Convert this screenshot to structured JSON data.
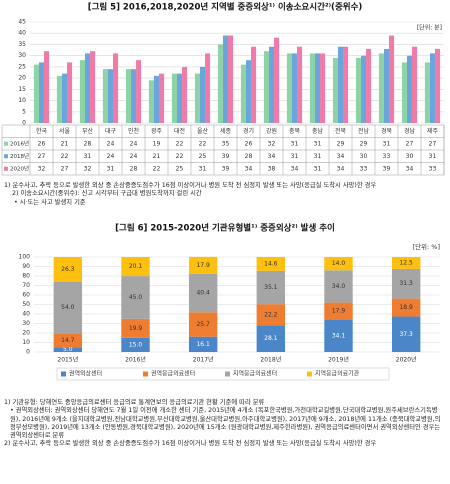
{
  "chart_data": [
    {
      "type": "bar",
      "title": "[그림 5] 2016,2018,2020년 지역별 중증외상¹⁾ 이송소요시간²⁾(중위수)",
      "unit_label": "[단위: 분]",
      "categories": [
        "한국",
        "서울",
        "부산",
        "대구",
        "인천",
        "광주",
        "대전",
        "울산",
        "세종",
        "경기",
        "강원",
        "충북",
        "충남",
        "전북",
        "전남",
        "경북",
        "경남",
        "제주"
      ],
      "series": [
        {
          "name": "2016년",
          "color": "#8ed3a6",
          "values": [
            26,
            21,
            28,
            24,
            24,
            19,
            22,
            22,
            35,
            26,
            32,
            31,
            31,
            29,
            29,
            31,
            27,
            27
          ]
        },
        {
          "name": "2018년",
          "color": "#6aa6dc",
          "values": [
            27,
            22,
            31,
            24,
            24,
            21,
            22,
            25,
            39,
            28,
            34,
            31,
            31,
            34,
            30,
            33,
            30,
            31
          ]
        },
        {
          "name": "2020년",
          "color": "#f07aa8",
          "values": [
            32,
            27,
            32,
            31,
            28,
            22,
            25,
            31,
            39,
            34,
            38,
            34,
            31,
            34,
            33,
            39,
            34,
            33
          ]
        }
      ],
      "ylim": [
        0,
        45
      ],
      "yticks": [
        0,
        5,
        10,
        15,
        20,
        25,
        30,
        35,
        40,
        45
      ],
      "grid": true
    },
    {
      "type": "stacked_bar",
      "title": "[그림 6] 2015-2020년 기관유형별¹⁾ 중증외상²⁾ 발생 추이",
      "unit_label": "[단위: %]",
      "categories": [
        "2015년",
        "2016년",
        "2017년",
        "2018년",
        "2019년",
        "2020년"
      ],
      "series": [
        {
          "name": "권역외상센터",
          "color": "#4a86c8",
          "values": [
            5.0,
            15.0,
            16.1,
            28.1,
            34.1,
            37.3
          ],
          "value_labels": [
            "5.0",
            "15.0",
            "16.1",
            "28.1",
            "34.1",
            "37.3"
          ]
        },
        {
          "name": "권역응급의료센터",
          "color": "#ee7d31",
          "values": [
            14.7,
            19.9,
            25.7,
            22.2,
            17.9,
            18.9
          ],
          "value_labels": [
            "14.7",
            "19.9",
            "25.7",
            "22.2",
            "17.9",
            "18.9"
          ]
        },
        {
          "name": "지역응급의료센터",
          "color": "#a5a5a5",
          "values": [
            54.0,
            45.0,
            40.4,
            35.1,
            34.0,
            31.3
          ],
          "value_labels": [
            "54.0",
            "45.0",
            "40.4",
            "35.1",
            "34.0",
            "31.3"
          ]
        },
        {
          "name": "지역응급의료기관",
          "color": "#fdc00f",
          "values": [
            26.3,
            20.1,
            17.9,
            14.6,
            14.0,
            12.5
          ],
          "value_labels": [
            "26.3",
            "20.1",
            "17.9",
            "14.6",
            "14.0",
            "12.5"
          ]
        }
      ],
      "ylim": [
        0,
        100
      ],
      "yticks": [
        0,
        10,
        20,
        30,
        40,
        50,
        60,
        70,
        80,
        90,
        100
      ],
      "grid": true
    }
  ],
  "notes1": [
    "1) 운수사고, 추락 등으로 발생한 외상 중 손상중증도점수가 16점 이상이거나 병원 도착 전 심정지 발생 또는 사망(응급실 도착시 사망)한 경우",
    "2) 이송소요시간(중위수): 신고 시각부터 구급대 병원도착까지 걸린 시간",
    "• 시·도는 사고 발생지 기준"
  ],
  "notes2": [
    "1) 기관유형: 당해연도 중앙응급의료센터 응급의료 통계연보의 응급의료기관 현황 기준에 따라 분류",
    "• 권역외상센터: 권역외상센터 당해연도 7월 1일 이전에 개소한 센터 기준, 2015년에 4개소 (목포한국병원,가천대학교길병원,단국대학교병원,원주세브란스기독병원), 2016년에 9개소 (을지대학교병원,전남대학교병원,부산대학교병원,울산대학교병원,아주대학교병원), 2017년에 9개소, 2018년에 11개소 (충북대학교병원,의정부성모병원), 2019년에 13개소 (안동병원,경북대학교병원), 2020년에 15개소 (원광대학교병원,제주한라병원), 권역응급의료센터이면서 권역외상센터인 경우는 권역외상센터로 분류",
    "2) 운수사고, 추락 등으로 발생한 외상 중 손상중증도점수가 16점 이상이거나 병원 도착 전 심정지 발생 또는 사망(응급실 도착시 사망)한 경우"
  ]
}
